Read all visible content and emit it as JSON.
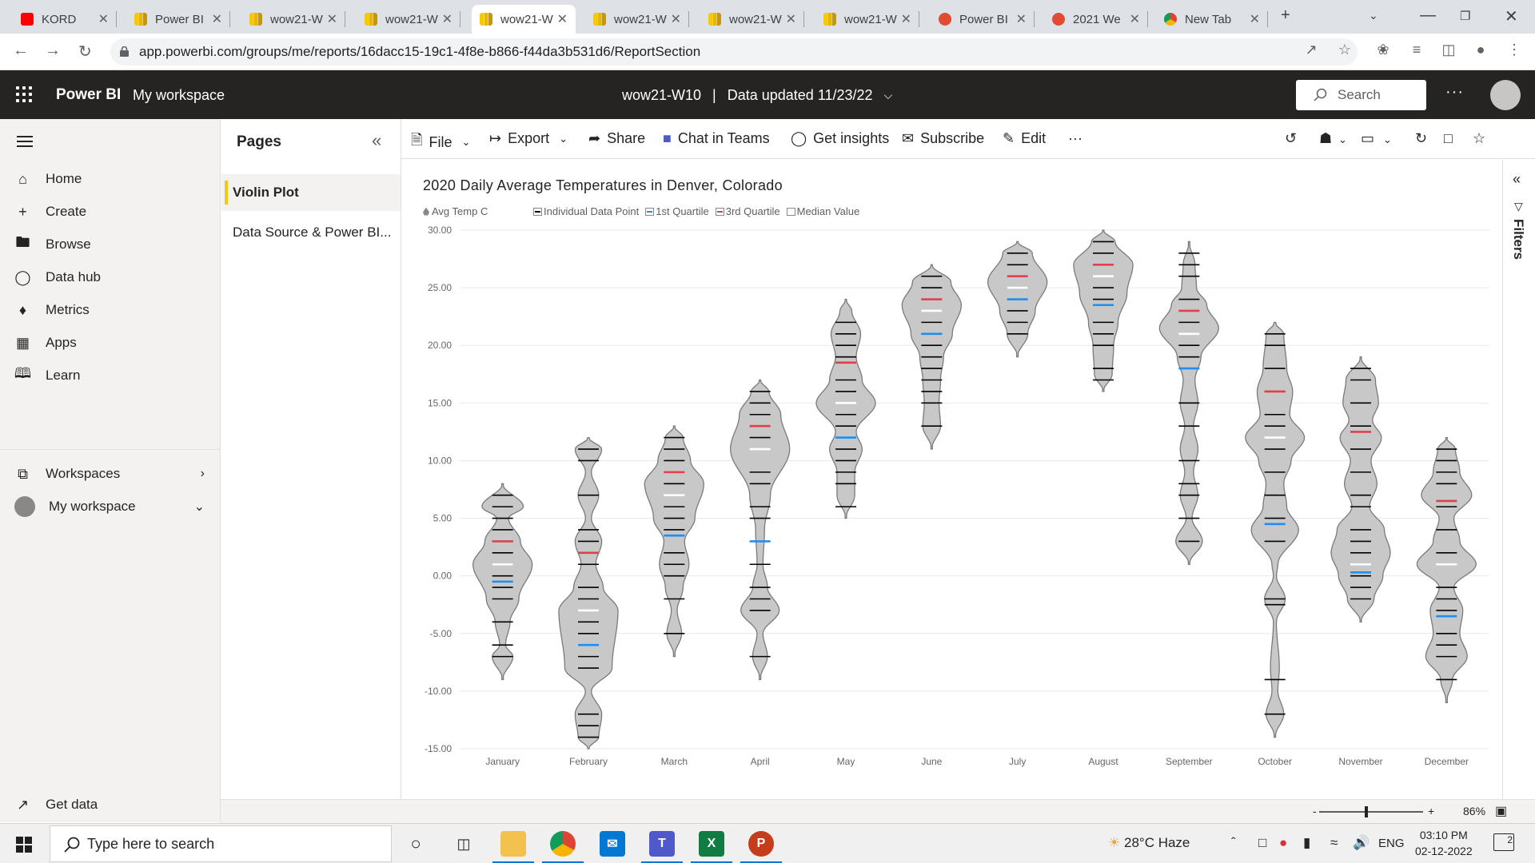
{
  "browser": {
    "tabs": [
      {
        "title": "KORD",
        "icon": "youtube-icon",
        "active": false
      },
      {
        "title": "Power BI",
        "icon": "powerbi-icon",
        "active": false
      },
      {
        "title": "wow21-W",
        "icon": "powerbi-icon",
        "active": false
      },
      {
        "title": "wow21-W",
        "icon": "powerbi-icon",
        "active": false
      },
      {
        "title": "wow21-W",
        "icon": "powerbi-icon",
        "active": true
      },
      {
        "title": "wow21-W",
        "icon": "powerbi-icon",
        "active": false
      },
      {
        "title": "wow21-W",
        "icon": "powerbi-icon",
        "active": false
      },
      {
        "title": "wow21-W",
        "icon": "powerbi-icon",
        "active": false
      },
      {
        "title": "Power BI",
        "icon": "fox-icon",
        "active": false
      },
      {
        "title": "2021 We",
        "icon": "fox-icon",
        "active": false
      },
      {
        "title": "New Tab",
        "icon": "chrome-icon",
        "active": false
      }
    ],
    "url": "app.powerbi.com/groups/me/reports/16dacc15-19c1-4f8e-b866-f44da3b531d6/ReportSection"
  },
  "header": {
    "brand": "Power BI",
    "workspace": "My workspace",
    "report_name": "wow21-W10",
    "separator": "|",
    "data_updated": "Data updated 11/23/22",
    "search_placeholder": "Search",
    "more": "···"
  },
  "leftnav": {
    "items": [
      {
        "label": "Home",
        "icon": "home-icon"
      },
      {
        "label": "Create",
        "icon": "plus-icon"
      },
      {
        "label": "Browse",
        "icon": "folder-icon"
      },
      {
        "label": "Data hub",
        "icon": "cylinder-icon"
      },
      {
        "label": "Metrics",
        "icon": "trophy-icon"
      },
      {
        "label": "Apps",
        "icon": "apps-icon"
      },
      {
        "label": "Learn",
        "icon": "book-icon"
      }
    ],
    "workspaces": "Workspaces",
    "my_workspace": "My workspace",
    "get_data": "Get data"
  },
  "pages": {
    "title": "Pages",
    "items": [
      {
        "label": "Violin Plot",
        "active": true
      },
      {
        "label": "Data Source & Power BI...",
        "active": false
      }
    ]
  },
  "actionbar": {
    "file": "File",
    "export": "Export",
    "share": "Share",
    "chat": "Chat in Teams",
    "insights": "Get insights",
    "subscribe": "Subscribe",
    "edit": "Edit",
    "more": "···"
  },
  "filters": {
    "label": "Filters"
  },
  "statusbar": {
    "zoom": "86%",
    "minus": "-",
    "plus": "+"
  },
  "taskbar": {
    "search_placeholder": "Type here to search",
    "weather": "28°C  Haze",
    "lang": "ENG",
    "time": "03:10 PM",
    "date": "02-12-2022",
    "notifications": "2"
  },
  "colors": {
    "violin_fill": "#c8c8c8",
    "data_point": "#000000",
    "q1": "#1f8ef1",
    "q3": "#e0404a",
    "median": "#ffffff"
  },
  "chart_data": {
    "type": "violin",
    "title": "2020 Daily Average Temperatures in Denver, Colorado",
    "legend": [
      "Avg Temp C",
      "Individual Data Point",
      "1st Quartile",
      "3rd Quartile",
      "Median Value"
    ],
    "ylim": [
      -15,
      30
    ],
    "yticks": [
      "30.00",
      "25.00",
      "20.00",
      "15.00",
      "10.00",
      "5.00",
      "0.00",
      "-5.00",
      "-10.00",
      "-15.00"
    ],
    "grid": true,
    "legend_position": "top-left",
    "categories": [
      "January",
      "February",
      "March",
      "April",
      "May",
      "June",
      "July",
      "August",
      "September",
      "October",
      "November",
      "December"
    ],
    "series": [
      {
        "month": "January",
        "min": -9,
        "max": 8,
        "points": [
          7,
          6,
          5,
          4,
          3,
          2,
          1,
          0,
          -1,
          -2,
          -4,
          -6,
          -7
        ],
        "q1": -0.5,
        "median": 1,
        "q3": 3,
        "density": [
          [
            -9,
            0
          ],
          [
            -7,
            0.35
          ],
          [
            -6,
            0.1
          ],
          [
            -4,
            0.25
          ],
          [
            -2,
            0.55
          ],
          [
            1,
            1
          ],
          [
            3,
            0.6
          ],
          [
            5,
            0.2
          ],
          [
            6,
            0.7
          ],
          [
            8,
            0
          ]
        ]
      },
      {
        "month": "February",
        "min": -15,
        "max": 12,
        "points": [
          11,
          10,
          7,
          4,
          3,
          1,
          -1,
          -2,
          -3,
          -4,
          -5,
          -7,
          -8,
          -12,
          -13,
          -14
        ],
        "q1": -6,
        "median": -3,
        "q3": 2,
        "density": [
          [
            -15,
            0
          ],
          [
            -14,
            0.35
          ],
          [
            -12,
            0.45
          ],
          [
            -10,
            0.1
          ],
          [
            -8,
            0.8
          ],
          [
            -3,
            1
          ],
          [
            -1,
            0.5
          ],
          [
            1,
            0.25
          ],
          [
            3,
            0.45
          ],
          [
            5,
            0.1
          ],
          [
            7,
            0.35
          ],
          [
            9,
            0.1
          ],
          [
            11,
            0.45
          ],
          [
            12,
            0
          ]
        ]
      },
      {
        "month": "March",
        "min": -7,
        "max": 13,
        "points": [
          12,
          11,
          10,
          8,
          6,
          5,
          4,
          2,
          1,
          0,
          -2,
          -5
        ],
        "q1": 3.5,
        "median": 7,
        "q3": 9,
        "density": [
          [
            -7,
            0
          ],
          [
            -5,
            0.25
          ],
          [
            -3,
            0.1
          ],
          [
            -1,
            0.3
          ],
          [
            1,
            0.5
          ],
          [
            3,
            0.35
          ],
          [
            5,
            0.7
          ],
          [
            8,
            1
          ],
          [
            10,
            0.55
          ],
          [
            12,
            0.3
          ],
          [
            13,
            0
          ]
        ]
      },
      {
        "month": "April",
        "min": -9,
        "max": 17,
        "points": [
          16,
          15,
          14,
          12,
          9,
          8,
          6,
          5,
          1,
          -1,
          -2,
          -3,
          -7
        ],
        "q1": 3,
        "median": 11,
        "q3": 13,
        "density": [
          [
            -9,
            0
          ],
          [
            -7,
            0.25
          ],
          [
            -5,
            0.1
          ],
          [
            -3,
            0.65
          ],
          [
            -1,
            0.25
          ],
          [
            1,
            0.1
          ],
          [
            4,
            0.15
          ],
          [
            7,
            0.35
          ],
          [
            11,
            1
          ],
          [
            14,
            0.7
          ],
          [
            16,
            0.3
          ],
          [
            17,
            0
          ]
        ]
      },
      {
        "month": "May",
        "min": 5,
        "max": 24,
        "points": [
          22,
          21,
          20,
          19,
          17,
          16,
          14,
          13,
          11,
          10,
          9,
          8,
          6
        ],
        "q1": 12,
        "median": 15,
        "q3": 18.5,
        "density": [
          [
            5,
            0
          ],
          [
            7,
            0.3
          ],
          [
            9,
            0.3
          ],
          [
            11,
            0.55
          ],
          [
            12.5,
            0.35
          ],
          [
            15,
            1
          ],
          [
            17,
            0.55
          ],
          [
            19,
            0.35
          ],
          [
            21,
            0.5
          ],
          [
            23,
            0.2
          ],
          [
            24,
            0
          ]
        ]
      },
      {
        "month": "June",
        "min": 11,
        "max": 27,
        "points": [
          26,
          25,
          23,
          22,
          21,
          20,
          19,
          18,
          17,
          16,
          15,
          13
        ],
        "q1": 21,
        "median": 23,
        "q3": 24,
        "density": [
          [
            11,
            0
          ],
          [
            13,
            0.3
          ],
          [
            15,
            0.25
          ],
          [
            17,
            0.3
          ],
          [
            19,
            0.4
          ],
          [
            21,
            0.7
          ],
          [
            23.5,
            1
          ],
          [
            25.5,
            0.65
          ],
          [
            27,
            0
          ]
        ]
      },
      {
        "month": "July",
        "min": 19,
        "max": 29,
        "points": [
          28,
          27,
          25,
          23,
          22,
          21
        ],
        "q1": 24,
        "median": 25,
        "q3": 26,
        "density": [
          [
            19,
            0
          ],
          [
            21,
            0.35
          ],
          [
            23,
            0.6
          ],
          [
            25.5,
            1
          ],
          [
            28,
            0.5
          ],
          [
            29,
            0
          ]
        ]
      },
      {
        "month": "August",
        "min": 16,
        "max": 30,
        "points": [
          29,
          28,
          26,
          25,
          24,
          22,
          21,
          20,
          18,
          17
        ],
        "q1": 23.5,
        "median": 26,
        "q3": 27,
        "density": [
          [
            16,
            0
          ],
          [
            17.5,
            0.3
          ],
          [
            20,
            0.35
          ],
          [
            22,
            0.5
          ],
          [
            24.5,
            0.8
          ],
          [
            27,
            1
          ],
          [
            29,
            0.4
          ],
          [
            30,
            0
          ]
        ]
      },
      {
        "month": "September",
        "min": 1,
        "max": 29,
        "points": [
          28,
          27,
          26,
          24,
          22,
          20,
          19,
          15,
          13,
          10,
          8,
          7,
          5,
          3
        ],
        "q1": 18,
        "median": 21,
        "q3": 23,
        "density": [
          [
            1,
            0
          ],
          [
            3,
            0.45
          ],
          [
            5,
            0.1
          ],
          [
            7,
            0.3
          ],
          [
            9,
            0.15
          ],
          [
            11,
            0.3
          ],
          [
            13,
            0.15
          ],
          [
            15,
            0.3
          ],
          [
            17,
            0.2
          ],
          [
            19,
            0.4
          ],
          [
            21.5,
            1
          ],
          [
            23.5,
            0.6
          ],
          [
            25,
            0.25
          ],
          [
            27,
            0.2
          ],
          [
            29,
            0
          ]
        ]
      },
      {
        "month": "October",
        "min": -14,
        "max": 22,
        "points": [
          21,
          20,
          18,
          16,
          14,
          13,
          11,
          9,
          7,
          5,
          3,
          -2,
          -2.5,
          -9,
          -12
        ],
        "q1": 4.5,
        "median": 12,
        "q3": 16,
        "density": [
          [
            -14,
            0
          ],
          [
            -12,
            0.3
          ],
          [
            -10,
            0.1
          ],
          [
            -8,
            0.15
          ],
          [
            -4,
            0.05
          ],
          [
            -2,
            0.35
          ],
          [
            0,
            0.05
          ],
          [
            1,
            0.1
          ],
          [
            4,
            0.8
          ],
          [
            6,
            0.4
          ],
          [
            8,
            0.3
          ],
          [
            10,
            0.55
          ],
          [
            12,
            1
          ],
          [
            14,
            0.5
          ],
          [
            16,
            0.6
          ],
          [
            18,
            0.4
          ],
          [
            21,
            0.3
          ],
          [
            22,
            0
          ]
        ]
      },
      {
        "month": "November",
        "min": -4,
        "max": 19,
        "points": [
          18,
          17,
          15,
          13,
          12.5,
          11,
          9,
          7,
          6,
          4,
          3,
          2,
          1,
          0,
          -1,
          -2
        ],
        "q1": 0.3,
        "median": 1,
        "q3": 12.5,
        "density": [
          [
            -4,
            0
          ],
          [
            -2,
            0.45
          ],
          [
            0,
            0.75
          ],
          [
            2,
            1
          ],
          [
            4,
            0.8
          ],
          [
            6,
            0.3
          ],
          [
            8,
            0.55
          ],
          [
            10,
            0.35
          ],
          [
            12,
            0.7
          ],
          [
            13.5,
            0.4
          ],
          [
            15,
            0.6
          ],
          [
            17,
            0.5
          ],
          [
            19,
            0
          ]
        ]
      },
      {
        "month": "December",
        "min": -11,
        "max": 12,
        "points": [
          11,
          10,
          9,
          8,
          6,
          4,
          2,
          -1,
          -2,
          -3,
          -5,
          -6,
          -7,
          -9
        ],
        "q1": -3.5,
        "median": 1,
        "q3": 6.5,
        "density": [
          [
            -11,
            0
          ],
          [
            -9,
            0.2
          ],
          [
            -7,
            0.7
          ],
          [
            -5,
            0.45
          ],
          [
            -3,
            0.55
          ],
          [
            -1,
            0.25
          ],
          [
            1,
            1
          ],
          [
            3,
            0.45
          ],
          [
            5,
            0.25
          ],
          [
            7,
            0.85
          ],
          [
            9,
            0.45
          ],
          [
            11,
            0.3
          ],
          [
            12,
            0
          ]
        ]
      }
    ]
  }
}
